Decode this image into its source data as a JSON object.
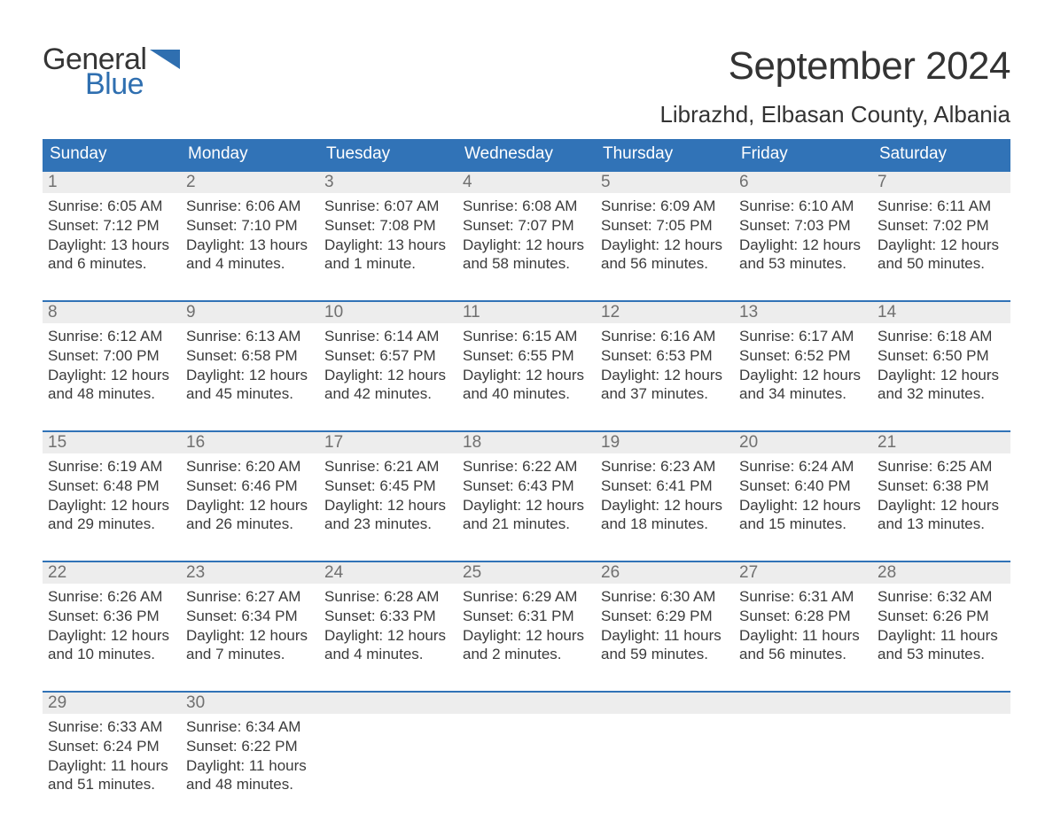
{
  "logo": {
    "general": "General",
    "blue": "Blue",
    "flag_color": "#2f6fb0"
  },
  "title": "September 2024",
  "location": "Librazhd, Elbasan County, Albania",
  "colors": {
    "header_bg": "#3173b7",
    "header_text": "#ffffff",
    "daynum_bg": "#ededed",
    "daynum_text": "#707070",
    "body_text": "#3b3b3b",
    "week_border": "#3173b7",
    "page_bg": "#ffffff"
  },
  "typography": {
    "title_fontsize": 44,
    "location_fontsize": 26,
    "dayheader_fontsize": 19,
    "daynum_fontsize": 19,
    "body_fontsize": 17,
    "logo_fontsize": 34
  },
  "day_names": [
    "Sunday",
    "Monday",
    "Tuesday",
    "Wednesday",
    "Thursday",
    "Friday",
    "Saturday"
  ],
  "weeks": [
    [
      {
        "n": "1",
        "sunrise": "Sunrise: 6:05 AM",
        "sunset": "Sunset: 7:12 PM",
        "d1": "Daylight: 13 hours",
        "d2": "and 6 minutes."
      },
      {
        "n": "2",
        "sunrise": "Sunrise: 6:06 AM",
        "sunset": "Sunset: 7:10 PM",
        "d1": "Daylight: 13 hours",
        "d2": "and 4 minutes."
      },
      {
        "n": "3",
        "sunrise": "Sunrise: 6:07 AM",
        "sunset": "Sunset: 7:08 PM",
        "d1": "Daylight: 13 hours",
        "d2": "and 1 minute."
      },
      {
        "n": "4",
        "sunrise": "Sunrise: 6:08 AM",
        "sunset": "Sunset: 7:07 PM",
        "d1": "Daylight: 12 hours",
        "d2": "and 58 minutes."
      },
      {
        "n": "5",
        "sunrise": "Sunrise: 6:09 AM",
        "sunset": "Sunset: 7:05 PM",
        "d1": "Daylight: 12 hours",
        "d2": "and 56 minutes."
      },
      {
        "n": "6",
        "sunrise": "Sunrise: 6:10 AM",
        "sunset": "Sunset: 7:03 PM",
        "d1": "Daylight: 12 hours",
        "d2": "and 53 minutes."
      },
      {
        "n": "7",
        "sunrise": "Sunrise: 6:11 AM",
        "sunset": "Sunset: 7:02 PM",
        "d1": "Daylight: 12 hours",
        "d2": "and 50 minutes."
      }
    ],
    [
      {
        "n": "8",
        "sunrise": "Sunrise: 6:12 AM",
        "sunset": "Sunset: 7:00 PM",
        "d1": "Daylight: 12 hours",
        "d2": "and 48 minutes."
      },
      {
        "n": "9",
        "sunrise": "Sunrise: 6:13 AM",
        "sunset": "Sunset: 6:58 PM",
        "d1": "Daylight: 12 hours",
        "d2": "and 45 minutes."
      },
      {
        "n": "10",
        "sunrise": "Sunrise: 6:14 AM",
        "sunset": "Sunset: 6:57 PM",
        "d1": "Daylight: 12 hours",
        "d2": "and 42 minutes."
      },
      {
        "n": "11",
        "sunrise": "Sunrise: 6:15 AM",
        "sunset": "Sunset: 6:55 PM",
        "d1": "Daylight: 12 hours",
        "d2": "and 40 minutes."
      },
      {
        "n": "12",
        "sunrise": "Sunrise: 6:16 AM",
        "sunset": "Sunset: 6:53 PM",
        "d1": "Daylight: 12 hours",
        "d2": "and 37 minutes."
      },
      {
        "n": "13",
        "sunrise": "Sunrise: 6:17 AM",
        "sunset": "Sunset: 6:52 PM",
        "d1": "Daylight: 12 hours",
        "d2": "and 34 minutes."
      },
      {
        "n": "14",
        "sunrise": "Sunrise: 6:18 AM",
        "sunset": "Sunset: 6:50 PM",
        "d1": "Daylight: 12 hours",
        "d2": "and 32 minutes."
      }
    ],
    [
      {
        "n": "15",
        "sunrise": "Sunrise: 6:19 AM",
        "sunset": "Sunset: 6:48 PM",
        "d1": "Daylight: 12 hours",
        "d2": "and 29 minutes."
      },
      {
        "n": "16",
        "sunrise": "Sunrise: 6:20 AM",
        "sunset": "Sunset: 6:46 PM",
        "d1": "Daylight: 12 hours",
        "d2": "and 26 minutes."
      },
      {
        "n": "17",
        "sunrise": "Sunrise: 6:21 AM",
        "sunset": "Sunset: 6:45 PM",
        "d1": "Daylight: 12 hours",
        "d2": "and 23 minutes."
      },
      {
        "n": "18",
        "sunrise": "Sunrise: 6:22 AM",
        "sunset": "Sunset: 6:43 PM",
        "d1": "Daylight: 12 hours",
        "d2": "and 21 minutes."
      },
      {
        "n": "19",
        "sunrise": "Sunrise: 6:23 AM",
        "sunset": "Sunset: 6:41 PM",
        "d1": "Daylight: 12 hours",
        "d2": "and 18 minutes."
      },
      {
        "n": "20",
        "sunrise": "Sunrise: 6:24 AM",
        "sunset": "Sunset: 6:40 PM",
        "d1": "Daylight: 12 hours",
        "d2": "and 15 minutes."
      },
      {
        "n": "21",
        "sunrise": "Sunrise: 6:25 AM",
        "sunset": "Sunset: 6:38 PM",
        "d1": "Daylight: 12 hours",
        "d2": "and 13 minutes."
      }
    ],
    [
      {
        "n": "22",
        "sunrise": "Sunrise: 6:26 AM",
        "sunset": "Sunset: 6:36 PM",
        "d1": "Daylight: 12 hours",
        "d2": "and 10 minutes."
      },
      {
        "n": "23",
        "sunrise": "Sunrise: 6:27 AM",
        "sunset": "Sunset: 6:34 PM",
        "d1": "Daylight: 12 hours",
        "d2": "and 7 minutes."
      },
      {
        "n": "24",
        "sunrise": "Sunrise: 6:28 AM",
        "sunset": "Sunset: 6:33 PM",
        "d1": "Daylight: 12 hours",
        "d2": "and 4 minutes."
      },
      {
        "n": "25",
        "sunrise": "Sunrise: 6:29 AM",
        "sunset": "Sunset: 6:31 PM",
        "d1": "Daylight: 12 hours",
        "d2": "and 2 minutes."
      },
      {
        "n": "26",
        "sunrise": "Sunrise: 6:30 AM",
        "sunset": "Sunset: 6:29 PM",
        "d1": "Daylight: 11 hours",
        "d2": "and 59 minutes."
      },
      {
        "n": "27",
        "sunrise": "Sunrise: 6:31 AM",
        "sunset": "Sunset: 6:28 PM",
        "d1": "Daylight: 11 hours",
        "d2": "and 56 minutes."
      },
      {
        "n": "28",
        "sunrise": "Sunrise: 6:32 AM",
        "sunset": "Sunset: 6:26 PM",
        "d1": "Daylight: 11 hours",
        "d2": "and 53 minutes."
      }
    ],
    [
      {
        "n": "29",
        "sunrise": "Sunrise: 6:33 AM",
        "sunset": "Sunset: 6:24 PM",
        "d1": "Daylight: 11 hours",
        "d2": "and 51 minutes."
      },
      {
        "n": "30",
        "sunrise": "Sunrise: 6:34 AM",
        "sunset": "Sunset: 6:22 PM",
        "d1": "Daylight: 11 hours",
        "d2": "and 48 minutes."
      },
      {
        "n": "",
        "sunrise": "",
        "sunset": "",
        "d1": "",
        "d2": ""
      },
      {
        "n": "",
        "sunrise": "",
        "sunset": "",
        "d1": "",
        "d2": ""
      },
      {
        "n": "",
        "sunrise": "",
        "sunset": "",
        "d1": "",
        "d2": ""
      },
      {
        "n": "",
        "sunrise": "",
        "sunset": "",
        "d1": "",
        "d2": ""
      },
      {
        "n": "",
        "sunrise": "",
        "sunset": "",
        "d1": "",
        "d2": ""
      }
    ]
  ]
}
